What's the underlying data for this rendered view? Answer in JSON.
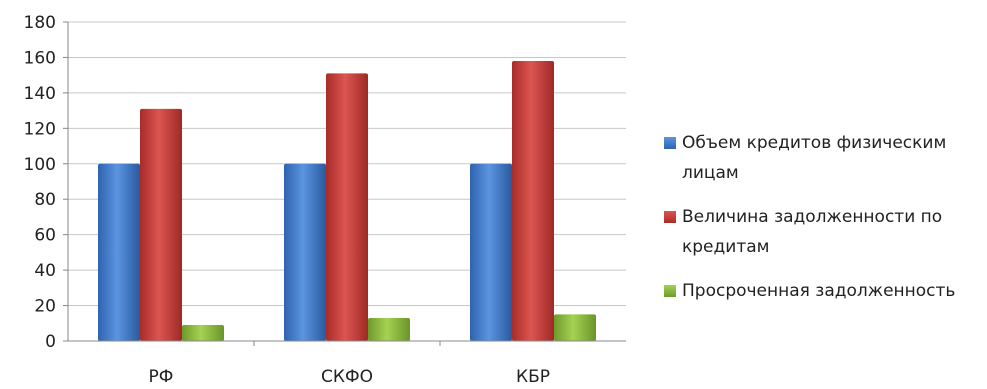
{
  "chart_data": {
    "type": "bar",
    "categories": [
      "РФ",
      "СКФО",
      "КБР"
    ],
    "series": [
      {
        "name": "Объем кредитов физическим лицам",
        "values": [
          100,
          100,
          100
        ],
        "color": "#3c78cc"
      },
      {
        "name": "Величина задолженности по кредитам",
        "values": [
          131,
          151,
          158
        ],
        "color": "#c63a36"
      },
      {
        "name": "Просроченная задолженность",
        "values": [
          9,
          13,
          15
        ],
        "color": "#8dbb3c"
      }
    ],
    "ylim": [
      0,
      180
    ],
    "yticks": [
      0,
      20,
      40,
      60,
      80,
      100,
      120,
      140,
      160,
      180
    ],
    "grid": true,
    "legend_position": "right",
    "title": "",
    "xlabel": "",
    "ylabel": ""
  }
}
